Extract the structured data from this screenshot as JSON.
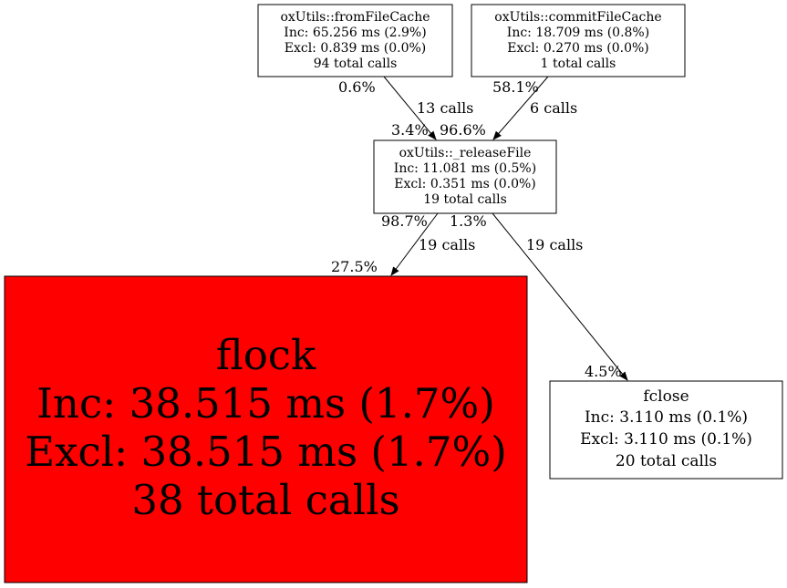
{
  "nodes": {
    "fromFileCache": {
      "name": "oxUtils::fromFileCache",
      "inc": "Inc: 65.256 ms (2.9%)",
      "excl": "Excl: 0.839 ms (0.0%)",
      "calls": "94 total calls"
    },
    "commitFileCache": {
      "name": "oxUtils::commitFileCache",
      "inc": "Inc: 18.709 ms (0.8%)",
      "excl": "Excl: 0.270 ms (0.0%)",
      "calls": "1 total calls"
    },
    "releaseFile": {
      "name": "oxUtils::_releaseFile",
      "inc": "Inc: 11.081 ms (0.5%)",
      "excl": "Excl: 0.351 ms (0.0%)",
      "calls": "19 total calls"
    },
    "flock": {
      "name": "flock",
      "inc": "Inc: 38.515 ms (1.7%)",
      "excl": "Excl: 38.515 ms (1.7%)",
      "calls": "38 total calls",
      "fill": "#ff0000"
    },
    "fclose": {
      "name": "fclose",
      "inc": "Inc: 3.110 ms (0.1%)",
      "excl": "Excl: 3.110 ms (0.1%)",
      "calls": "20 total calls"
    }
  },
  "edges": [
    {
      "from": "oxUtils::fromFileCache",
      "to": "oxUtils::_releaseFile",
      "tail": "0.6%",
      "label": "13 calls",
      "head": "3.4%"
    },
    {
      "from": "oxUtils::commitFileCache",
      "to": "oxUtils::_releaseFile",
      "tail": "58.1%",
      "label": "6 calls",
      "head": "96.6%"
    },
    {
      "from": "oxUtils::_releaseFile",
      "to": "flock",
      "tail": "98.7%",
      "label": "19 calls",
      "head": "27.5%"
    },
    {
      "from": "oxUtils::_releaseFile",
      "to": "fclose",
      "tail": "1.3%",
      "label": "19 calls",
      "head": "4.5%"
    }
  ]
}
